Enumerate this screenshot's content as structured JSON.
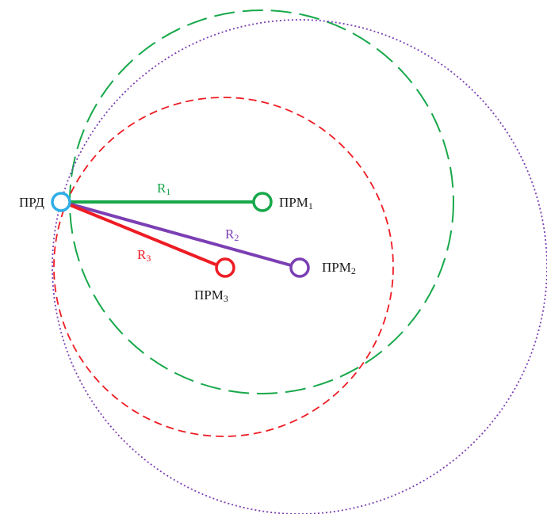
{
  "colors": {
    "green": "#17a84a",
    "purple": "#7b3fb3",
    "red": "#ee1c24",
    "transmitter": "#2eaee6",
    "text": "#1a1a1a"
  },
  "transmitter": {
    "label": "ПРД"
  },
  "receivers": [
    {
      "label_main": "ПРМ",
      "label_sub": "1",
      "color_key": "green"
    },
    {
      "label_main": "ПРМ",
      "label_sub": "2",
      "color_key": "purple"
    },
    {
      "label_main": "ПРМ",
      "label_sub": "3",
      "color_key": "red"
    }
  ],
  "ranges": [
    {
      "label_main": "R",
      "label_sub": "1",
      "color_key": "green"
    },
    {
      "label_main": "R",
      "label_sub": "2",
      "color_key": "purple"
    },
    {
      "label_main": "R",
      "label_sub": "3",
      "color_key": "red"
    }
  ],
  "circles": [
    {
      "style": "long-dash",
      "color_key": "green"
    },
    {
      "style": "dotted",
      "color_key": "purple"
    },
    {
      "style": "short-dash",
      "color_key": "red"
    }
  ]
}
